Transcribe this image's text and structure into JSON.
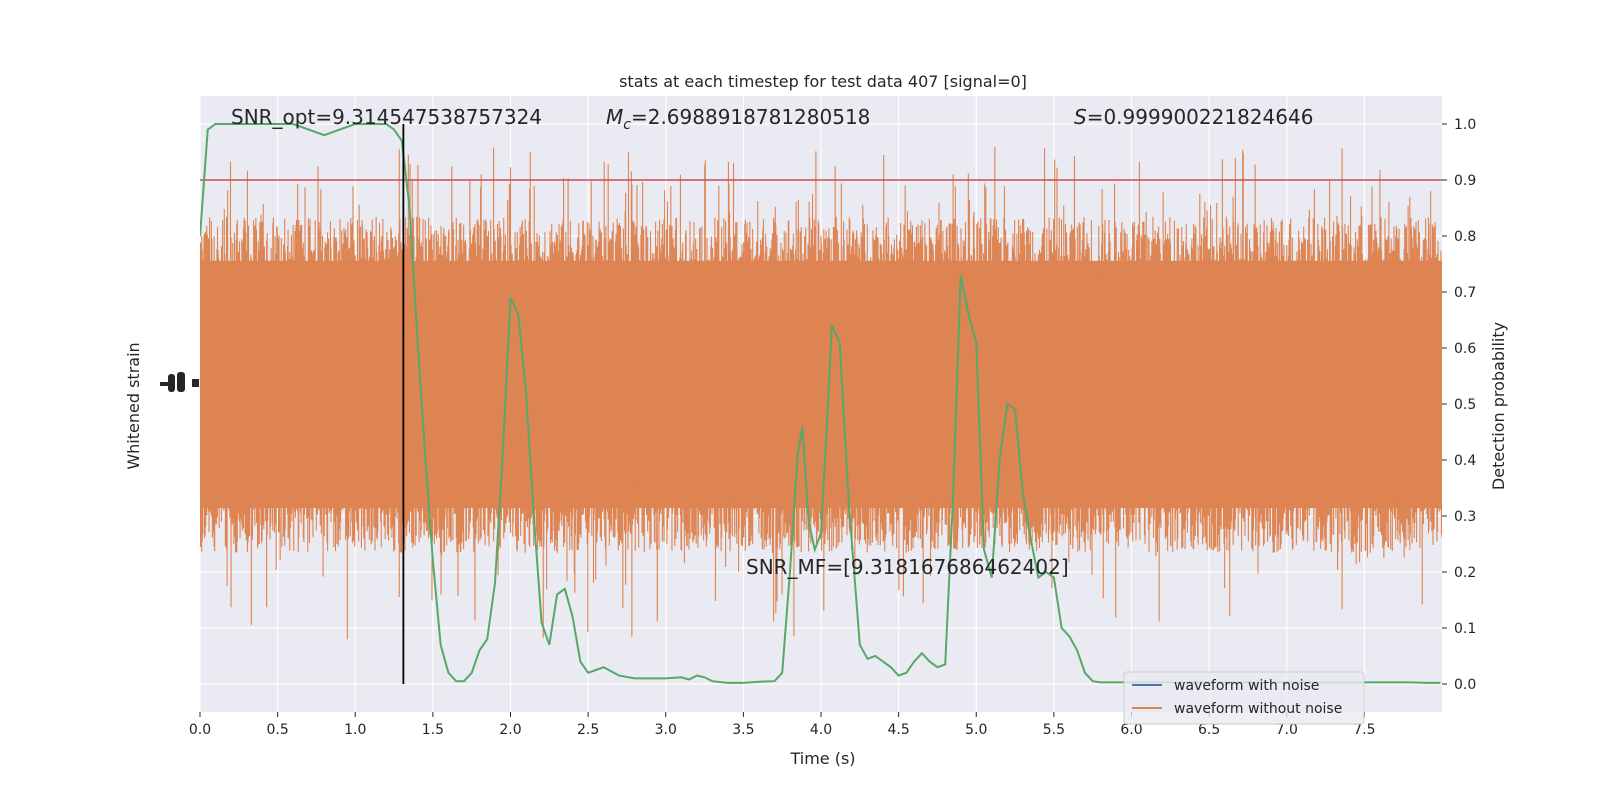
{
  "chart_data": {
    "type": "line",
    "title": "stats at each timestep for test data 407 [signal=0]",
    "xlabel": "Time (s)",
    "ylabel_left": "Whitened strain",
    "ylabel_right": "Detection probability",
    "xlim": [
      0,
      8
    ],
    "ylim_right": [
      -0.05,
      1.05
    ],
    "grid": true,
    "x_ticks": [
      "0.0",
      "0.5",
      "1.0",
      "1.5",
      "2.0",
      "2.5",
      "3.0",
      "3.5",
      "4.0",
      "4.5",
      "5.0",
      "5.5",
      "6.0",
      "6.5",
      "7.0",
      "7.5"
    ],
    "x_tick_values": [
      0,
      0.5,
      1,
      1.5,
      2,
      2.5,
      3,
      3.5,
      4,
      4.5,
      5,
      5.5,
      6,
      6.5,
      7,
      7.5
    ],
    "y_ticks_right": [
      "0.0",
      "0.1",
      "0.2",
      "0.3",
      "0.4",
      "0.5",
      "0.6",
      "0.7",
      "0.8",
      "0.9",
      "1.0"
    ],
    "y_tick_values_right": [
      0,
      0.1,
      0.2,
      0.3,
      0.4,
      0.5,
      0.6,
      0.7,
      0.8,
      0.9,
      1.0
    ],
    "threshold": {
      "value": 0.9,
      "color": "#c44e52"
    },
    "vline": {
      "x": 1.31,
      "color": "#000000"
    },
    "annotations": {
      "snr_opt": "SNR_opt=9.314547538757324",
      "mc_symbol": "M",
      "mc_sub": "c",
      "mc_value": "=2.6988918781280518",
      "s_symbol": "S",
      "s_value": "=0.999900221824646",
      "snr_mf": "SNR_MF=[9.318167686462402]"
    },
    "legend": {
      "position": "lower-right",
      "entries": [
        {
          "label": "waveform with noise",
          "color": "#4c72b0"
        },
        {
          "label": "waveform without noise",
          "color": "#dd8452"
        }
      ]
    },
    "series": [
      {
        "role": "detection-probability",
        "color": "#55a868",
        "x": [
          0,
          0.05,
          0.1,
          0.2,
          0.3,
          0.4,
          0.5,
          0.6,
          0.7,
          0.8,
          0.9,
          1.0,
          1.1,
          1.2,
          1.25,
          1.3,
          1.35,
          1.4,
          1.45,
          1.5,
          1.55,
          1.6,
          1.65,
          1.7,
          1.75,
          1.8,
          1.85,
          1.9,
          1.95,
          2.0,
          2.05,
          2.1,
          2.15,
          2.2,
          2.25,
          2.3,
          2.35,
          2.4,
          2.45,
          2.5,
          2.55,
          2.6,
          2.7,
          2.8,
          2.9,
          3.0,
          3.1,
          3.15,
          3.2,
          3.25,
          3.3,
          3.4,
          3.5,
          3.6,
          3.7,
          3.75,
          3.8,
          3.85,
          3.88,
          3.92,
          3.96,
          4.0,
          4.03,
          4.07,
          4.12,
          4.18,
          4.25,
          4.3,
          4.35,
          4.4,
          4.45,
          4.5,
          4.55,
          4.6,
          4.65,
          4.7,
          4.75,
          4.8,
          4.85,
          4.9,
          4.95,
          5.0,
          5.05,
          5.1,
          5.15,
          5.2,
          5.25,
          5.3,
          5.35,
          5.4,
          5.45,
          5.5,
          5.55,
          5.6,
          5.65,
          5.7,
          5.75,
          5.8,
          5.9,
          6.0,
          6.1,
          6.2,
          6.3,
          6.4,
          6.5,
          6.6,
          6.7,
          6.8,
          6.9,
          7.0,
          7.1,
          7.2,
          7.3,
          7.4,
          7.5,
          7.6,
          7.7,
          7.8,
          7.9,
          7.99
        ],
        "y": [
          0.8,
          0.99,
          1.0,
          1.0,
          1.0,
          1.0,
          1.0,
          1.0,
          0.99,
          0.98,
          0.99,
          1.0,
          1.0,
          1.0,
          0.99,
          0.97,
          0.85,
          0.62,
          0.41,
          0.22,
          0.07,
          0.02,
          0.005,
          0.005,
          0.02,
          0.06,
          0.08,
          0.18,
          0.41,
          0.69,
          0.66,
          0.52,
          0.3,
          0.11,
          0.07,
          0.16,
          0.17,
          0.12,
          0.04,
          0.02,
          0.025,
          0.03,
          0.015,
          0.01,
          0.01,
          0.01,
          0.012,
          0.008,
          0.015,
          0.012,
          0.005,
          0.002,
          0.002,
          0.004,
          0.005,
          0.02,
          0.2,
          0.41,
          0.46,
          0.29,
          0.24,
          0.27,
          0.42,
          0.64,
          0.61,
          0.32,
          0.07,
          0.045,
          0.05,
          0.04,
          0.03,
          0.015,
          0.02,
          0.04,
          0.055,
          0.04,
          0.03,
          0.035,
          0.33,
          0.73,
          0.66,
          0.61,
          0.24,
          0.19,
          0.4,
          0.5,
          0.49,
          0.34,
          0.26,
          0.19,
          0.2,
          0.19,
          0.1,
          0.085,
          0.06,
          0.02,
          0.005,
          0.003,
          0.003,
          0.003,
          0.003,
          0.003,
          0.003,
          0.003,
          0.003,
          0.003,
          0.003,
          0.003,
          0.003,
          0.003,
          0.003,
          0.003,
          0.003,
          0.003,
          0.003,
          0.003,
          0.003,
          0.003,
          0.002,
          0.002
        ]
      },
      {
        "role": "waveform-without-noise",
        "color": "#dd8452",
        "band_y": [
          0.3,
          0.77
        ]
      }
    ]
  }
}
